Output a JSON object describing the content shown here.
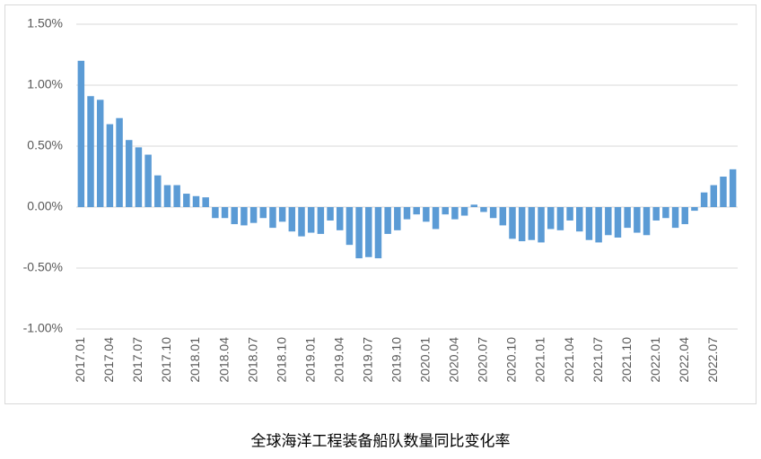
{
  "chart_data": {
    "type": "bar",
    "title": "全球海洋工程装备船队数量同比变化率",
    "categories": [
      "2017.01",
      null,
      null,
      "2017.04",
      null,
      null,
      "2017.07",
      null,
      null,
      "2017.10",
      null,
      null,
      "2018.01",
      null,
      null,
      "2018.04",
      null,
      null,
      "2018.07",
      null,
      null,
      "2018.10",
      null,
      null,
      "2019.01",
      null,
      null,
      "2019.04",
      null,
      null,
      "2019.07",
      null,
      null,
      "2019.10",
      null,
      null,
      "2020.01",
      null,
      null,
      "2020.04",
      null,
      null,
      "2020.07",
      null,
      null,
      "2020.10",
      null,
      null,
      "2021.01",
      null,
      null,
      "2021.04",
      null,
      null,
      "2021.07",
      null,
      null,
      "2021.10",
      null,
      null,
      "2022.01",
      null,
      null,
      "2022.04",
      null,
      null,
      "2022.07",
      null,
      null
    ],
    "values": [
      1.2,
      0.91,
      0.88,
      0.68,
      0.73,
      0.55,
      0.49,
      0.43,
      0.26,
      0.18,
      0.18,
      0.11,
      0.09,
      0.08,
      -0.09,
      -0.09,
      -0.14,
      -0.15,
      -0.13,
      -0.09,
      -0.17,
      -0.12,
      -0.2,
      -0.24,
      -0.21,
      -0.22,
      -0.11,
      -0.19,
      -0.31,
      -0.42,
      -0.41,
      -0.42,
      -0.22,
      -0.19,
      -0.1,
      -0.06,
      -0.12,
      -0.18,
      -0.06,
      -0.1,
      -0.07,
      0.02,
      -0.04,
      -0.09,
      -0.15,
      -0.26,
      -0.28,
      -0.27,
      -0.29,
      -0.18,
      -0.19,
      -0.11,
      -0.2,
      -0.27,
      -0.29,
      -0.23,
      -0.25,
      -0.17,
      -0.21,
      -0.23,
      -0.11,
      -0.09,
      -0.17,
      -0.14,
      -0.03,
      0.12,
      0.18,
      0.25,
      0.31
    ],
    "color": "#5b9bd5",
    "ylim": [
      -1,
      1.5
    ],
    "yticks": [
      {
        "value": -1,
        "label": "-1.00%"
      },
      {
        "value": -0.5,
        "label": "-0.50%"
      },
      {
        "value": 0,
        "label": "0.00%"
      },
      {
        "value": 0.5,
        "label": "0.50%"
      },
      {
        "value": 1,
        "label": "1.00%"
      },
      {
        "value": 1.5,
        "label": "1.50%"
      }
    ],
    "grid": true
  }
}
